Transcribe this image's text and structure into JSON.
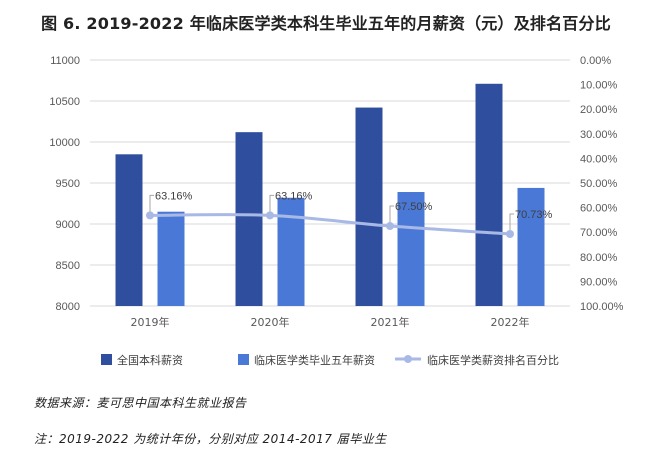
{
  "title": "图 6. 2019-2022 年临床医学类本科生毕业五年的月薪资（元）及排名百分比",
  "source_note": "数据来源：麦可思中国本科生就业报告",
  "year_note": "注：2019-2022 为统计年份，分别对应 2014-2017 届毕业生",
  "colors": {
    "series1": "#2F4F9E",
    "series2": "#4A78D6",
    "line": "#A9B9E6",
    "grid": "#d9d9d9"
  },
  "chart_data": {
    "type": "bar",
    "categories": [
      "2019年",
      "2020年",
      "2021年",
      "2022年"
    ],
    "series": [
      {
        "name": "全国本科薪资",
        "type": "bar",
        "axis": "left",
        "values": [
          9850,
          10120,
          10420,
          10710
        ]
      },
      {
        "name": "临床医学类毕业五年薪资",
        "type": "bar",
        "axis": "left",
        "values": [
          9150,
          9320,
          9390,
          9440
        ]
      },
      {
        "name": "临床医学类薪资排名百分比",
        "type": "line",
        "axis": "right",
        "values": [
          63.16,
          63.16,
          67.5,
          70.73
        ]
      }
    ],
    "data_labels": [
      "63.16%",
      "63.16%",
      "67.50%",
      "70.73%"
    ],
    "y_left": {
      "min": 8000,
      "max": 11000,
      "step": 500,
      "ticks": [
        "8000",
        "8500",
        "9000",
        "9500",
        "10000",
        "10500",
        "11000"
      ]
    },
    "y_right": {
      "min": 0,
      "max": 100,
      "step": 10,
      "reversed": true,
      "ticks": [
        "0.00%",
        "10.00%",
        "20.00%",
        "30.00%",
        "40.00%",
        "50.00%",
        "60.00%",
        "70.00%",
        "80.00%",
        "90.00%",
        "100.00%"
      ]
    },
    "legend_position": "bottom",
    "grid": true
  }
}
